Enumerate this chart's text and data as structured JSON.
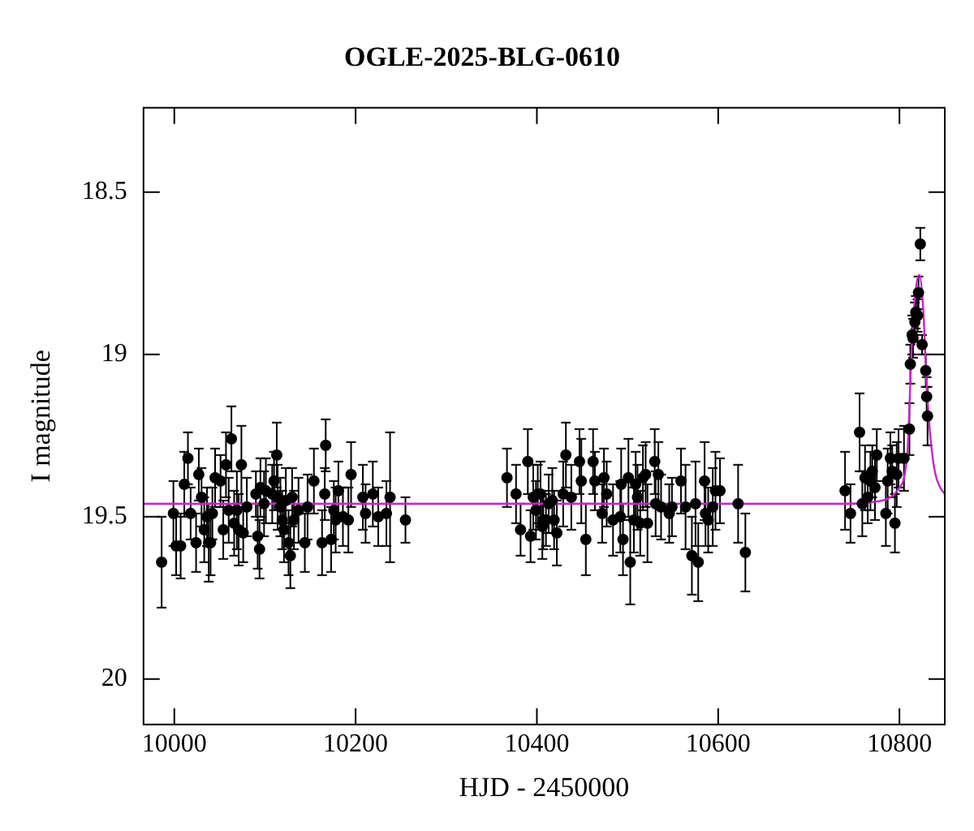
{
  "chart_data": {
    "type": "scatter",
    "title": "OGLE-2025-BLG-0610",
    "xlabel": "HJD - 2450000",
    "ylabel": "I magnitude",
    "xlim": [
      9966,
      10850
    ],
    "ylim": [
      20.14,
      18.24
    ],
    "xticks": [
      10000,
      10200,
      10400,
      10600,
      10800
    ],
    "yticks": [
      18.5,
      19,
      19.5,
      20
    ],
    "grid": false,
    "legend": false,
    "series": [
      {
        "type": "scatter",
        "marker": "circle",
        "color": "#000000",
        "x": [
          9986,
          9999,
          10002,
          10007,
          10011,
          10015,
          10018,
          10024,
          10027,
          10030,
          10033,
          10036,
          10038,
          10040,
          10042,
          10045,
          10051,
          10054,
          10057,
          10060,
          10063,
          10066,
          10069,
          10071,
          10074,
          10076,
          10080,
          10090,
          10092,
          10094,
          10095,
          10099,
          10101,
          10108,
          10110,
          10113,
          10114,
          10117,
          10119,
          10121,
          10123,
          10126,
          10128,
          10130,
          10132,
          10137,
          10144,
          10147,
          10154,
          10163,
          10166,
          10167,
          10173,
          10176,
          10178,
          10181,
          10186,
          10192,
          10195,
          10208,
          10211,
          10219,
          10225,
          10234,
          10238,
          10255,
          10367,
          10377,
          10382,
          10390,
          10393,
          10396,
          10399,
          10401,
          10404,
          10406,
          10407,
          10410,
          10413,
          10417,
          10419,
          10422,
          10429,
          10432,
          10438,
          10447,
          10449,
          10454,
          10462,
          10464,
          10472,
          10474,
          10477,
          10484,
          10492,
          10493,
          10495,
          10501,
          10503,
          10507,
          10509,
          10511,
          10514,
          10517,
          10520,
          10522,
          10530,
          10531,
          10534,
          10537,
          10546,
          10549,
          10559,
          10564,
          10571,
          10575,
          10578,
          10585,
          10586,
          10589,
          10594,
          10597,
          10602,
          10622,
          10630,
          10740,
          10746,
          10756,
          10759,
          10762,
          10765,
          10768,
          10770,
          10773,
          10775,
          10785,
          10787,
          10790,
          10792,
          10795,
          10797,
          10799,
          10805,
          10811,
          10812,
          10814,
          10815,
          10817,
          10818,
          10820,
          10821,
          10823,
          10825,
          10829,
          10830,
          10831
        ],
        "values": [
          19.64,
          19.49,
          19.59,
          19.59,
          19.4,
          19.32,
          19.49,
          19.58,
          19.37,
          19.44,
          19.54,
          19.5,
          19.58,
          19.58,
          19.49,
          19.38,
          19.39,
          19.54,
          19.34,
          19.48,
          19.26,
          19.52,
          19.48,
          19.54,
          19.34,
          19.55,
          19.47,
          19.43,
          19.56,
          19.6,
          19.41,
          19.46,
          19.42,
          19.43,
          19.39,
          19.31,
          19.44,
          19.47,
          19.51,
          19.54,
          19.45,
          19.58,
          19.62,
          19.44,
          19.51,
          19.48,
          19.58,
          19.47,
          19.39,
          19.58,
          19.43,
          19.28,
          19.57,
          19.48,
          19.51,
          19.42,
          19.5,
          19.51,
          19.37,
          19.44,
          19.49,
          19.43,
          19.5,
          19.49,
          19.44,
          19.51,
          19.38,
          19.43,
          19.54,
          19.33,
          19.56,
          19.44,
          19.48,
          19.43,
          19.43,
          19.53,
          19.51,
          19.51,
          19.46,
          19.45,
          19.51,
          19.55,
          19.43,
          19.31,
          19.44,
          19.33,
          19.39,
          19.57,
          19.33,
          19.39,
          19.49,
          19.38,
          19.43,
          19.51,
          19.5,
          19.4,
          19.57,
          19.38,
          19.64,
          19.51,
          19.4,
          19.44,
          19.52,
          19.38,
          19.37,
          19.52,
          19.33,
          19.46,
          19.37,
          19.47,
          19.49,
          19.47,
          19.39,
          19.47,
          19.62,
          19.46,
          19.64,
          19.39,
          19.49,
          19.51,
          19.47,
          19.42,
          19.42,
          19.46,
          19.61,
          19.42,
          19.49,
          19.24,
          19.46,
          19.38,
          19.44,
          19.39,
          19.36,
          19.41,
          19.31,
          19.49,
          19.39,
          19.32,
          19.36,
          19.52,
          19.37,
          19.32,
          19.32,
          19.23,
          19.03,
          18.94,
          18.95,
          18.9,
          18.87,
          18.88,
          18.81,
          18.66,
          18.97,
          19.05,
          19.13,
          19.19
        ],
        "errors": [
          0.14,
          0.1,
          0.09,
          0.1,
          0.1,
          0.08,
          0.08,
          0.09,
          0.08,
          0.09,
          0.1,
          0.09,
          0.12,
          0.1,
          0.08,
          0.09,
          0.08,
          0.09,
          0.1,
          0.1,
          0.1,
          0.1,
          0.12,
          0.11,
          0.12,
          0.09,
          0.09,
          0.07,
          0.1,
          0.09,
          0.09,
          0.1,
          0.1,
          0.09,
          0.09,
          0.1,
          0.1,
          0.09,
          0.09,
          0.1,
          0.1,
          0.1,
          0.1,
          0.09,
          0.09,
          0.1,
          0.09,
          0.1,
          0.1,
          0.1,
          0.08,
          0.08,
          0.1,
          0.09,
          0.1,
          0.09,
          0.09,
          0.1,
          0.1,
          0.1,
          0.09,
          0.1,
          0.09,
          0.1,
          0.2,
          0.07,
          0.09,
          0.09,
          0.08,
          0.1,
          0.08,
          0.1,
          0.09,
          0.09,
          0.1,
          0.1,
          0.09,
          0.08,
          0.09,
          0.1,
          0.09,
          0.1,
          0.1,
          0.1,
          0.1,
          0.1,
          0.13,
          0.11,
          0.1,
          0.09,
          0.09,
          0.09,
          0.1,
          0.11,
          0.11,
          0.11,
          0.11,
          0.12,
          0.13,
          0.1,
          0.1,
          0.1,
          0.1,
          0.1,
          0.1,
          0.12,
          0.1,
          0.1,
          0.1,
          0.1,
          0.09,
          0.09,
          0.1,
          0.13,
          0.12,
          0.13,
          0.12,
          0.12,
          0.1,
          0.1,
          0.12,
          0.12,
          0.1,
          0.12,
          0.12,
          0.12,
          0.09,
          0.12,
          0.1,
          0.1,
          0.08,
          0.09,
          0.08,
          0.1,
          0.08,
          0.1,
          0.1,
          0.08,
          0.08,
          0.09,
          0.1,
          0.09,
          0.1,
          0.08,
          0.06,
          0.06,
          0.06,
          0.06,
          0.05,
          0.05,
          0.05,
          0.05,
          0.03,
          0.05,
          0.06,
          0.09
        ]
      },
      {
        "type": "line",
        "marker": "none",
        "color": "#cc22cc",
        "x": [
          9966,
          10740,
          10770,
          10790,
          10800,
          10805,
          10809,
          10814,
          10818,
          10822,
          10826,
          10830,
          10834,
          10839,
          10845,
          10850
        ],
        "values": [
          19.46,
          19.46,
          19.455,
          19.44,
          19.41,
          19.38,
          19.29,
          18.95,
          18.8,
          18.755,
          18.85,
          19.09,
          19.25,
          19.36,
          19.41,
          19.43
        ]
      }
    ]
  }
}
